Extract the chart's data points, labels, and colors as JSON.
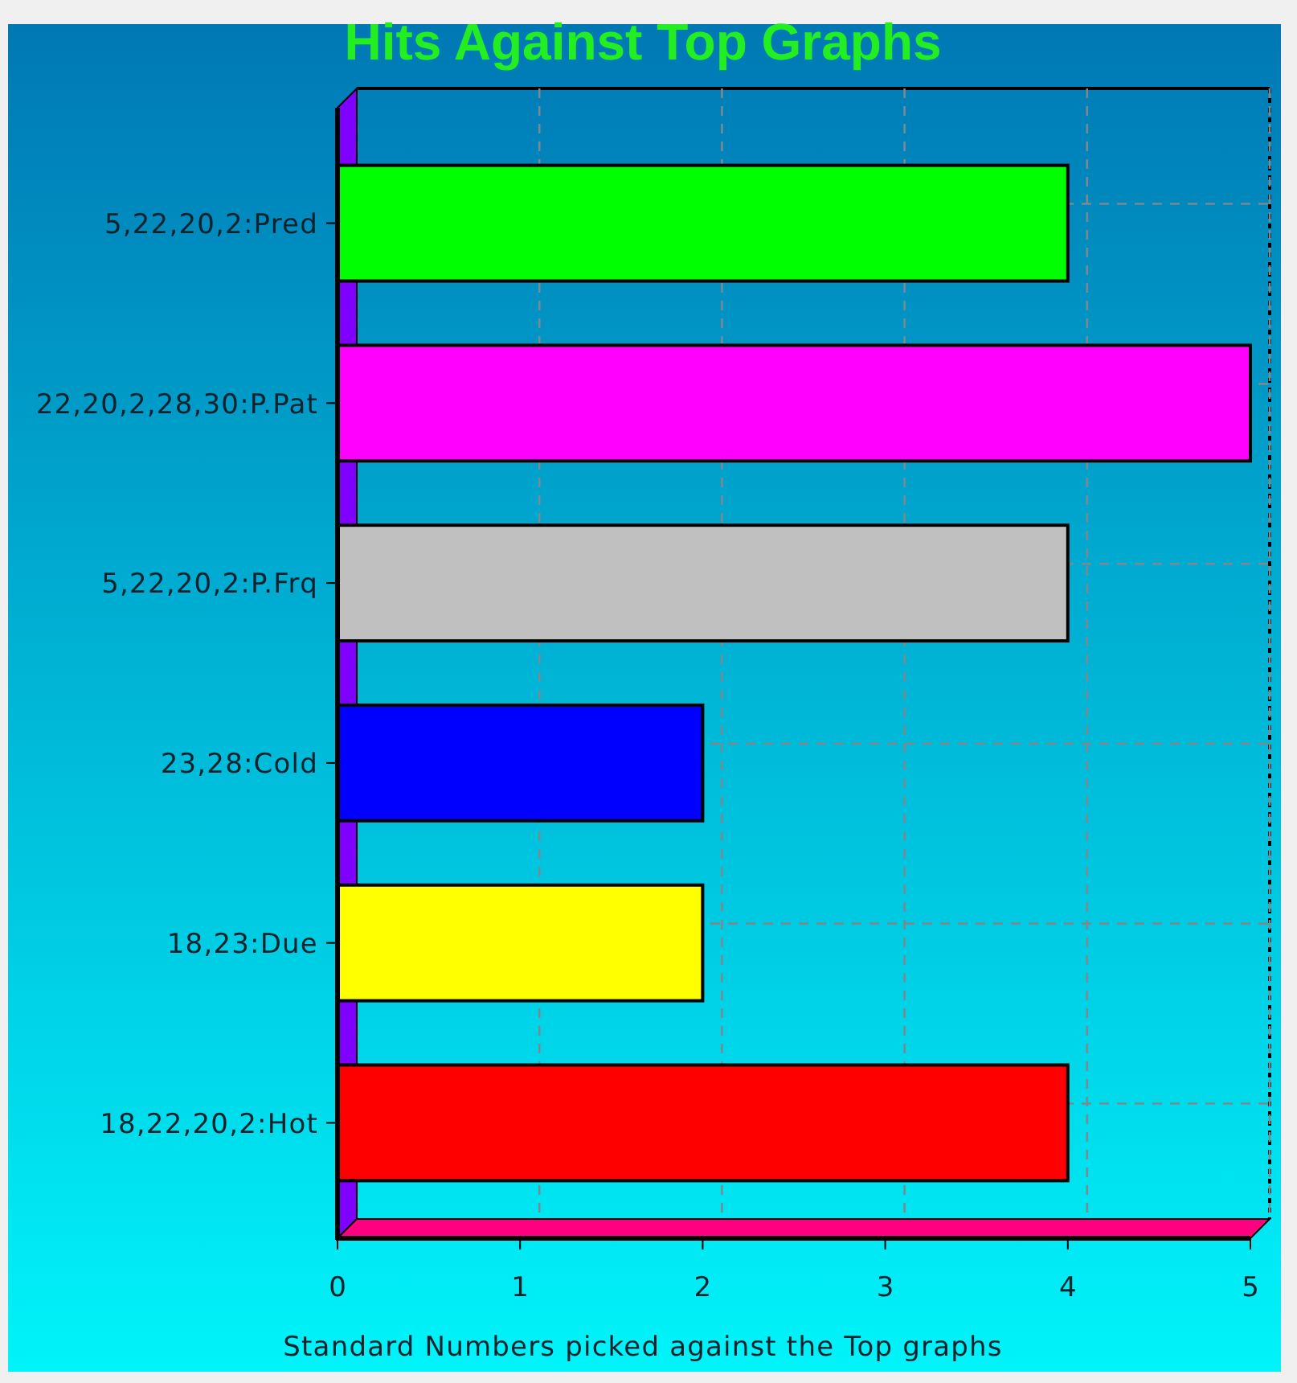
{
  "chart_data": {
    "type": "bar",
    "orientation": "horizontal",
    "title": "Hits Against Top Graphs",
    "xlabel": "Standard Numbers picked against the Top graphs",
    "categories": [
      "5,22,20,2:Pred",
      "22,20,2,28,30:P.Pat",
      "5,22,20,2:P.Frq",
      "23,28:Cold",
      "18,23:Due",
      "18,22,20,2:Hot"
    ],
    "values": [
      4,
      5,
      4,
      2,
      2,
      4
    ],
    "colors": [
      "#00ff00",
      "#ff00ff",
      "#c0c0c0",
      "#0000ff",
      "#ffff00",
      "#ff0000"
    ],
    "xlim": [
      0,
      5
    ],
    "xticks": [
      0,
      1,
      2,
      3,
      4,
      5
    ],
    "grid": true
  }
}
